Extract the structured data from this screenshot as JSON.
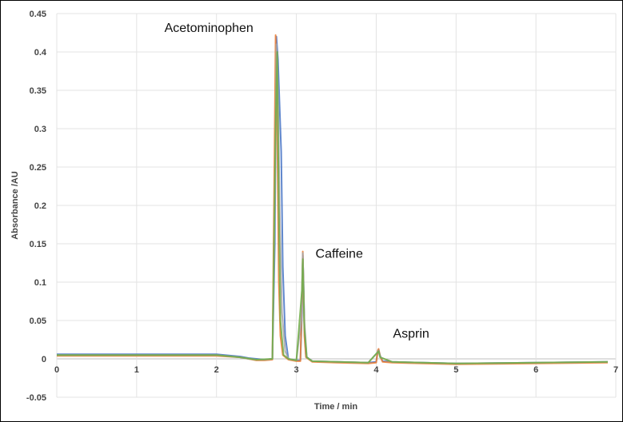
{
  "chart_data": {
    "type": "line",
    "xlabel": "Time / min",
    "ylabel": "Absorbance /AU",
    "xlim": [
      0,
      7
    ],
    "ylim": [
      -0.05,
      0.45
    ],
    "x_ticks": [
      "0",
      "1",
      "2",
      "3",
      "4",
      "5",
      "6",
      "7"
    ],
    "y_ticks": [
      "-0.05",
      "0",
      "0.05",
      "0.1",
      "0.15",
      "0.2",
      "0.25",
      "0.3",
      "0.35",
      "0.4",
      "0.45"
    ],
    "grid": true,
    "annotations": [
      {
        "text": "Acetominophen",
        "x": 2.75,
        "y": 0.42
      },
      {
        "text": "Caffeine",
        "x": 3.08,
        "y": 0.14
      },
      {
        "text": "Asprin",
        "x": 4.03,
        "y": 0.013
      }
    ],
    "series": [
      {
        "color": "#4472c4",
        "x": [
          0,
          1,
          2,
          2.3,
          2.4,
          2.5,
          2.6,
          2.7,
          2.73,
          2.75,
          2.77,
          2.79,
          2.81,
          2.83,
          2.86,
          2.9,
          3.0,
          3.05,
          3.07,
          3.08,
          3.09,
          3.1,
          3.12,
          3.2,
          3.5,
          3.9,
          4.0,
          4.02,
          4.03,
          4.05,
          4.08,
          4.2,
          5,
          6,
          6.9
        ],
        "y": [
          0.006,
          0.006,
          0.006,
          0.003,
          0.001,
          0.0,
          -0.001,
          0.0,
          0.15,
          0.42,
          0.39,
          0.33,
          0.27,
          0.12,
          0.03,
          0.0,
          -0.002,
          -0.002,
          0.06,
          0.135,
          0.1,
          0.04,
          0.003,
          -0.003,
          -0.004,
          -0.005,
          -0.004,
          0.01,
          0.012,
          0.004,
          -0.003,
          -0.004,
          -0.006,
          -0.005,
          -0.004
        ]
      },
      {
        "color": "#ed7d31",
        "x": [
          0,
          1,
          2,
          2.3,
          2.4,
          2.5,
          2.6,
          2.7,
          2.72,
          2.74,
          2.76,
          2.78,
          2.8,
          2.83,
          2.9,
          3.0,
          3.05,
          3.07,
          3.08,
          3.09,
          3.1,
          3.12,
          3.2,
          3.5,
          3.9,
          4.0,
          4.02,
          4.03,
          4.05,
          4.08,
          4.2,
          5,
          6,
          6.9
        ],
        "y": [
          0.004,
          0.004,
          0.004,
          0.002,
          0.0,
          -0.002,
          -0.002,
          -0.001,
          0.2,
          0.422,
          0.3,
          0.1,
          0.03,
          0.005,
          -0.001,
          -0.003,
          -0.003,
          0.08,
          0.14,
          0.09,
          0.03,
          0.002,
          -0.004,
          -0.005,
          -0.006,
          -0.005,
          0.011,
          0.013,
          0.003,
          -0.004,
          -0.005,
          -0.007,
          -0.006,
          -0.005
        ]
      },
      {
        "color": "#a5a5a5",
        "x": [
          0,
          1,
          2,
          2.3,
          2.4,
          2.5,
          2.6,
          2.7,
          2.73,
          2.75,
          2.77,
          2.79,
          2.82,
          2.86,
          2.9,
          3.0,
          3.06,
          3.08,
          3.1,
          3.13,
          3.2,
          3.9,
          4.02,
          4.03,
          4.05,
          4.2,
          5,
          6,
          6.9
        ],
        "y": [
          0.005,
          0.005,
          0.005,
          0.002,
          0.0,
          -0.001,
          -0.001,
          0.0,
          0.2,
          0.41,
          0.35,
          0.2,
          0.06,
          0.01,
          0.0,
          -0.002,
          0.05,
          0.138,
          0.05,
          0.002,
          -0.003,
          -0.005,
          0.009,
          0.011,
          0.002,
          -0.004,
          -0.006,
          -0.005,
          -0.004
        ]
      },
      {
        "color": "#70ad47",
        "x": [
          0,
          1,
          2,
          2.3,
          2.5,
          2.7,
          2.74,
          2.76,
          2.78,
          2.8,
          2.84,
          2.9,
          3.0,
          3.07,
          3.08,
          3.1,
          3.13,
          3.2,
          3.9,
          4.03,
          4.05,
          4.2,
          5,
          6,
          6.9
        ],
        "y": [
          0.005,
          0.005,
          0.005,
          0.002,
          -0.001,
          0.0,
          0.3,
          0.4,
          0.2,
          0.05,
          0.005,
          0.0,
          -0.002,
          0.09,
          0.13,
          0.04,
          0.002,
          -0.003,
          -0.005,
          0.01,
          0.002,
          -0.004,
          -0.006,
          -0.005,
          -0.004
        ]
      }
    ]
  }
}
